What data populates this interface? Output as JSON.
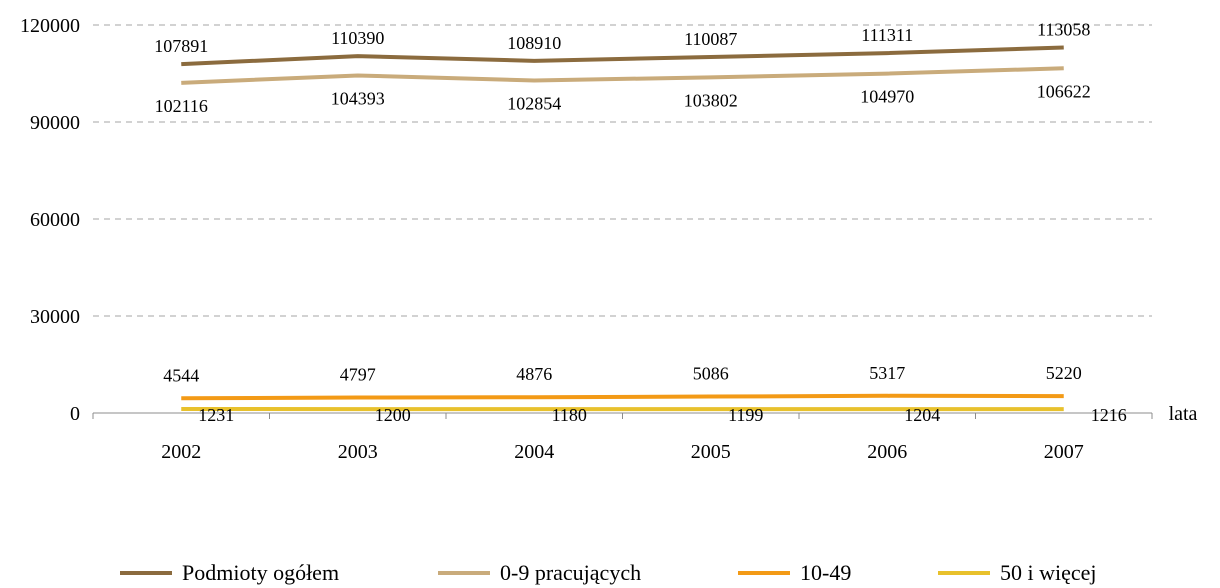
{
  "chart_data": {
    "type": "line",
    "categories": [
      "2002",
      "2003",
      "2004",
      "2005",
      "2006",
      "2007"
    ],
    "xlabel": "lata",
    "ylabel": "",
    "ylim": [
      0,
      120000
    ],
    "yticks": [
      "0",
      "30000",
      "60000",
      "90000",
      "120000"
    ],
    "grid": true,
    "legend_position": "bottom",
    "series": [
      {
        "name": "Podmioty ogółem",
        "color": "#8b6b3e",
        "values": [
          107891,
          110390,
          108910,
          110087,
          111311,
          113058
        ],
        "labels": [
          "107891",
          "110390",
          "108910",
          "110087",
          "111311",
          "113058"
        ]
      },
      {
        "name": "0-9 pracujących",
        "color": "#c9ab7b",
        "values": [
          102116,
          104393,
          102854,
          103802,
          104970,
          106622
        ],
        "labels": [
          "102116",
          "104393",
          "102854",
          "103802",
          "104970",
          "106622"
        ]
      },
      {
        "name": "10-49",
        "color": "#f39a16",
        "values": [
          4544,
          4797,
          4876,
          5086,
          5317,
          5220
        ],
        "labels": [
          "4544",
          "4797",
          "4876",
          "5086",
          "5317",
          "5220"
        ]
      },
      {
        "name": "50 i więcej",
        "color": "#e8c12c",
        "values": [
          1231,
          1200,
          1180,
          1199,
          1204,
          1216
        ],
        "labels": [
          "1231",
          "1200",
          "1180",
          "1199",
          "1204",
          "1216"
        ]
      }
    ]
  }
}
